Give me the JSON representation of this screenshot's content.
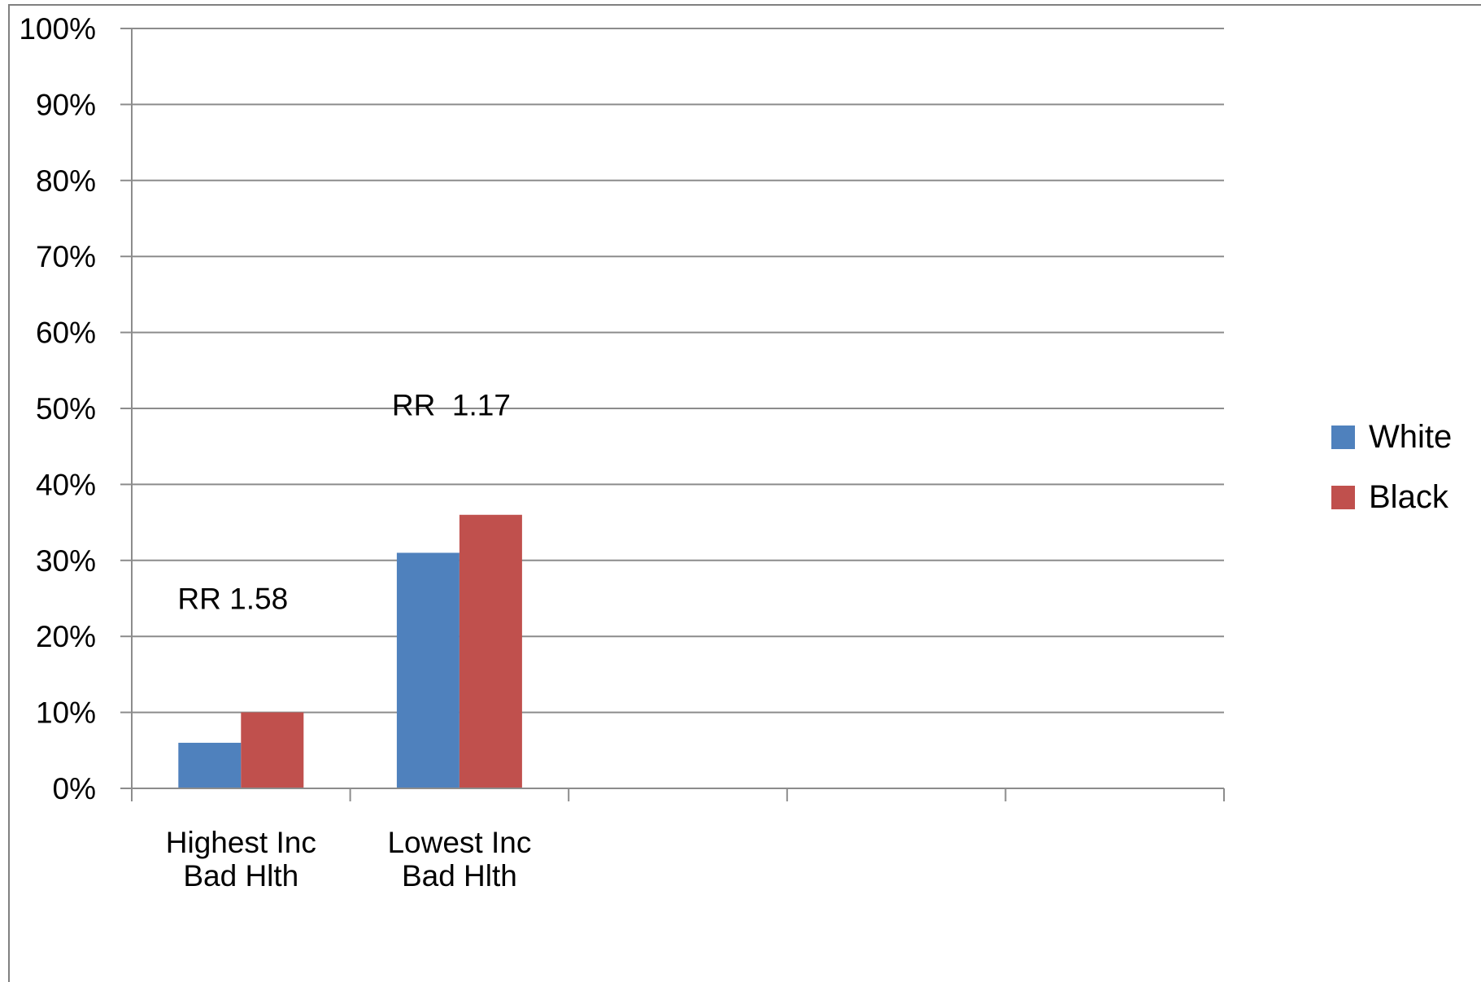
{
  "chart_data": {
    "type": "bar",
    "title": "",
    "xlabel": "",
    "ylabel": "",
    "ylim": [
      0,
      100
    ],
    "y_ticks": [
      0,
      10,
      20,
      30,
      40,
      50,
      60,
      70,
      80,
      90,
      100
    ],
    "y_tick_suffix": "%",
    "grid": true,
    "legend_position": "right",
    "empty_slots": 3,
    "categories": [
      [
        "Highest Inc",
        "Bad Hlth"
      ],
      [
        "Lowest Inc",
        "Bad Hlth"
      ]
    ],
    "series": [
      {
        "name": "White",
        "color": "#4f81bd",
        "values": [
          6,
          31
        ]
      },
      {
        "name": "Black",
        "color": "#c0504d",
        "values": [
          10,
          36
        ]
      }
    ],
    "annotations": [
      {
        "text": "RR 1.58",
        "category_index": 0,
        "y": 25
      },
      {
        "text": "RR  1.17",
        "category_index": 1,
        "y": 50.5
      }
    ]
  }
}
